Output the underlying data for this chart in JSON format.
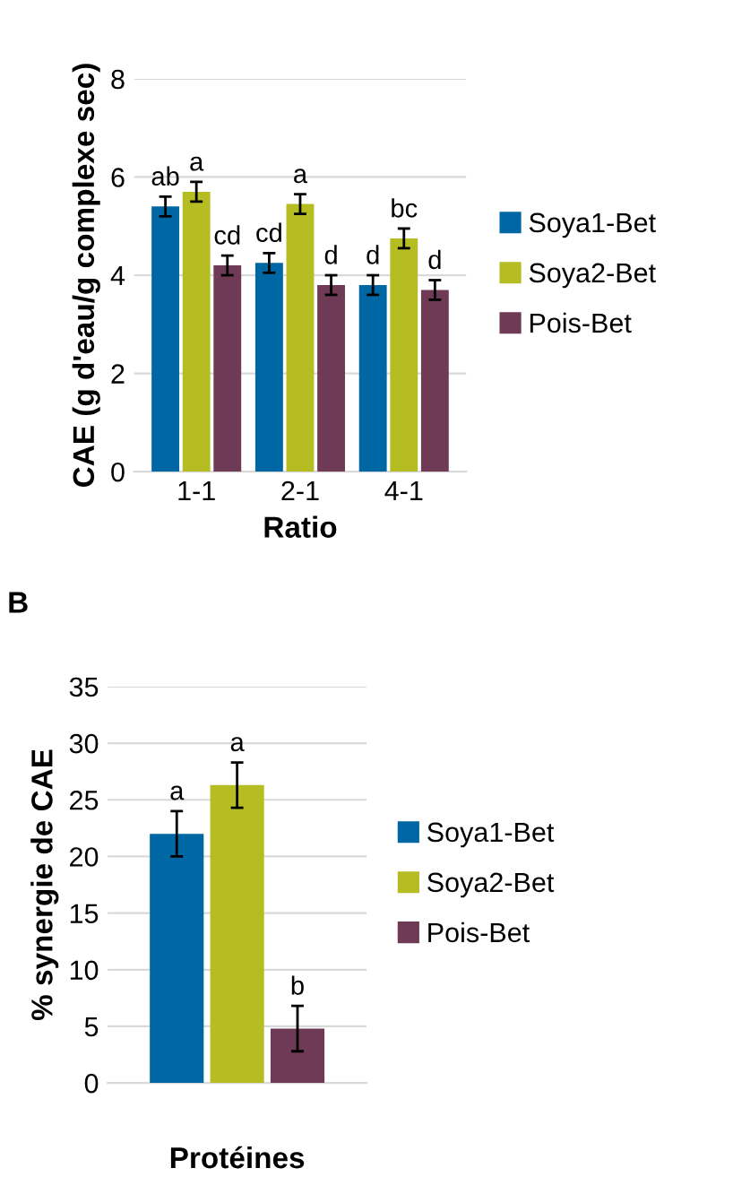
{
  "chart_data": [
    {
      "type": "bar",
      "categories": [
        "1-1",
        "2-1",
        "4-1"
      ],
      "xlabel": "Ratio",
      "ylabel": "CAE (g d'eau/g complexe sec)",
      "ylim": [
        0,
        8
      ],
      "yticks": [
        0,
        2,
        4,
        6,
        8
      ],
      "grid": "y",
      "legend": "right",
      "series": [
        {
          "name": "Soya1-Bet",
          "color": "#0067a5",
          "values": [
            5.4,
            4.25,
            3.8
          ],
          "errors": [
            0.2,
            0.2,
            0.2
          ],
          "value_labels": [
            "ab",
            "cd",
            "d"
          ]
        },
        {
          "name": "Soya2-Bet",
          "color": "#b5bd22",
          "values": [
            5.7,
            5.45,
            4.75
          ],
          "errors": [
            0.2,
            0.2,
            0.2
          ],
          "value_labels": [
            "a",
            "a",
            "bc"
          ]
        },
        {
          "name": "Pois-Bet",
          "color": "#6e3a56",
          "values": [
            4.2,
            3.8,
            3.7
          ],
          "errors": [
            0.2,
            0.2,
            0.2
          ],
          "value_labels": [
            "cd",
            "d",
            "d"
          ]
        }
      ]
    },
    {
      "type": "bar",
      "categories": [
        null
      ],
      "xlabel": "Protéines",
      "ylabel": "% synergie de CAE",
      "ylim": [
        0,
        35
      ],
      "yticks": [
        0,
        5,
        10,
        15,
        20,
        25,
        30,
        35
      ],
      "grid": "y",
      "legend": "right",
      "annotations": [
        "B"
      ],
      "series": [
        {
          "name": "Soya1-Bet",
          "color": "#0067a5",
          "values": [
            22
          ],
          "errors": [
            2
          ],
          "value_labels": [
            "a"
          ]
        },
        {
          "name": "Soya2-Bet",
          "color": "#b5bd22",
          "values": [
            26.3
          ],
          "errors": [
            2
          ],
          "value_labels": [
            "a"
          ]
        },
        {
          "name": "Pois-Bet",
          "color": "#6e3a56",
          "values": [
            4.8
          ],
          "errors": [
            2
          ],
          "value_labels": [
            "b"
          ]
        }
      ]
    }
  ]
}
